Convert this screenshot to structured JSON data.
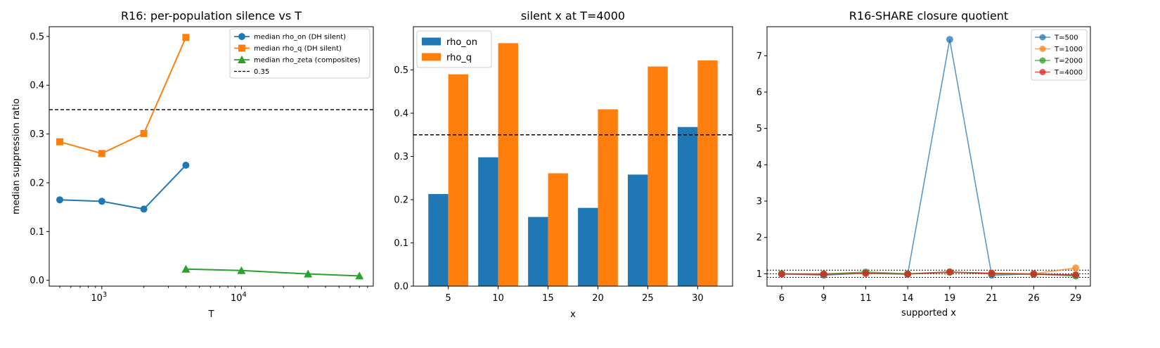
{
  "chart_data": [
    {
      "type": "line",
      "title": "R16: per-population silence vs T",
      "xlabel": "T",
      "ylabel": "median suppression ratio",
      "xscale": "log",
      "xlim": [
        420,
        88000
      ],
      "ylim": [
        -0.012,
        0.52
      ],
      "xticks": [
        {
          "value": 1000,
          "base": "10",
          "exp": "3"
        },
        {
          "value": 10000,
          "base": "10",
          "exp": "4"
        }
      ],
      "yticks": [
        {
          "value": 0.0,
          "label": "0.0"
        },
        {
          "value": 0.1,
          "label": "0.1"
        },
        {
          "value": 0.2,
          "label": "0.2"
        },
        {
          "value": 0.3,
          "label": "0.3"
        },
        {
          "value": 0.4,
          "label": "0.4"
        },
        {
          "value": 0.5,
          "label": "0.5"
        }
      ],
      "legend": "top-right",
      "series": [
        {
          "name": "median rho_on (DH silent)",
          "color": "#1f77b4",
          "marker": "circle",
          "x": [
            500,
            1000,
            2000,
            4000
          ],
          "y": [
            0.165,
            0.162,
            0.146,
            0.236
          ]
        },
        {
          "name": "median rho_q (DH silent)",
          "color": "#ff7f0e",
          "marker": "square",
          "x": [
            500,
            1000,
            2000,
            4000
          ],
          "y": [
            0.284,
            0.26,
            0.301,
            0.498
          ]
        },
        {
          "name": "median rho_zeta (composites)",
          "color": "#2ca02c",
          "marker": "triangle",
          "x": [
            4000,
            10000,
            30000,
            70000
          ],
          "y": [
            0.023,
            0.02,
            0.013,
            0.009
          ]
        }
      ],
      "hlines": [
        {
          "name": "0.35",
          "value": 0.35,
          "color": "#000000",
          "style": "dashed"
        }
      ]
    },
    {
      "type": "bar",
      "title": "silent x at T=4000",
      "xlabel": "x",
      "ylabel": "",
      "ylim": [
        0,
        0.6
      ],
      "categories": [
        "5",
        "10",
        "15",
        "20",
        "25",
        "30"
      ],
      "yticks": [
        {
          "value": 0.0,
          "label": "0.0"
        },
        {
          "value": 0.1,
          "label": "0.1"
        },
        {
          "value": 0.2,
          "label": "0.2"
        },
        {
          "value": 0.3,
          "label": "0.3"
        },
        {
          "value": 0.4,
          "label": "0.4"
        },
        {
          "value": 0.5,
          "label": "0.5"
        }
      ],
      "legend": "top-left",
      "series": [
        {
          "name": "rho_on",
          "color": "#1f77b4",
          "values": [
            0.213,
            0.298,
            0.16,
            0.181,
            0.258,
            0.368
          ]
        },
        {
          "name": "rho_q",
          "color": "#ff7f0e",
          "values": [
            0.49,
            0.562,
            0.261,
            0.409,
            0.508,
            0.522
          ]
        }
      ],
      "hlines": [
        {
          "value": 0.35,
          "color": "#000000",
          "style": "dashed"
        }
      ]
    },
    {
      "type": "line",
      "title": "R16-SHARE closure quotient",
      "xlabel": "supported x",
      "ylabel": "",
      "categories": [
        "6",
        "9",
        "11",
        "14",
        "19",
        "21",
        "26",
        "29"
      ],
      "ylim": [
        0.66,
        7.8
      ],
      "yticks": [
        {
          "value": 1,
          "label": "1"
        },
        {
          "value": 2,
          "label": "2"
        },
        {
          "value": 3,
          "label": "3"
        },
        {
          "value": 4,
          "label": "4"
        },
        {
          "value": 5,
          "label": "5"
        },
        {
          "value": 6,
          "label": "6"
        },
        {
          "value": 7,
          "label": "7"
        }
      ],
      "legend": "top-right",
      "series": [
        {
          "name": "T=500",
          "color": "#1f77b4",
          "values": [
            1.0,
            0.96,
            1.02,
            0.99,
            7.45,
            0.96,
            1.0,
            0.96
          ]
        },
        {
          "name": "T=1000",
          "color": "#ff7f0e",
          "values": [
            1.0,
            1.0,
            1.02,
            1.0,
            1.04,
            1.02,
            1.0,
            1.16
          ]
        },
        {
          "name": "T=2000",
          "color": "#2ca02c",
          "values": [
            1.0,
            0.99,
            1.05,
            1.0,
            1.05,
            1.0,
            0.99,
            0.94
          ]
        },
        {
          "name": "T=4000",
          "color": "#d62728",
          "values": [
            0.99,
            0.99,
            1.01,
            0.99,
            1.05,
            1.01,
            0.99,
            0.97
          ]
        }
      ],
      "hlines": [
        {
          "value": 1.1,
          "color": "#000000",
          "style": "dotted"
        },
        {
          "value": 1.0,
          "color": "#000000",
          "style": "dotted"
        },
        {
          "value": 0.9,
          "color": "#000000",
          "style": "dotted"
        }
      ]
    }
  ]
}
